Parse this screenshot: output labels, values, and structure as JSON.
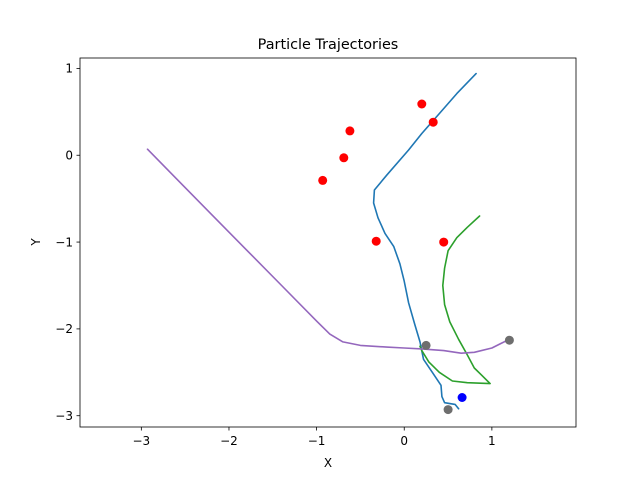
{
  "chart_data": {
    "type": "line",
    "title": "Particle Trajectories",
    "xlabel": "X",
    "ylabel": "Y",
    "xlim": [
      -3.7,
      1.96
    ],
    "ylim": [
      -3.13,
      1.12
    ],
    "xticks": [
      -3,
      -2,
      -1,
      0,
      1
    ],
    "yticks": [
      -3,
      -2,
      -1,
      0,
      1
    ],
    "xtick_labels": [
      "−3",
      "−2",
      "−1",
      "0",
      "1"
    ],
    "ytick_labels": [
      "−3",
      "−2",
      "−1",
      "0",
      "1"
    ],
    "grid": false,
    "legend": "none",
    "series": [
      {
        "color": "#1f77b4",
        "points": [
          [
            0.82,
            0.94
          ],
          [
            0.6,
            0.71
          ],
          [
            0.4,
            0.48
          ],
          [
            0.2,
            0.25
          ],
          [
            0.05,
            0.06
          ],
          [
            -0.2,
            -0.23
          ],
          [
            -0.34,
            -0.4
          ],
          [
            -0.35,
            -0.55
          ],
          [
            -0.3,
            -0.72
          ],
          [
            -0.22,
            -0.9
          ],
          [
            -0.12,
            -1.05
          ],
          [
            -0.05,
            -1.25
          ],
          [
            0.0,
            -1.45
          ],
          [
            0.05,
            -1.7
          ],
          [
            0.12,
            -1.95
          ],
          [
            0.18,
            -2.15
          ],
          [
            0.22,
            -2.35
          ],
          [
            0.32,
            -2.5
          ],
          [
            0.42,
            -2.65
          ],
          [
            0.43,
            -2.78
          ],
          [
            0.46,
            -2.85
          ],
          [
            0.58,
            -2.87
          ],
          [
            0.62,
            -2.92
          ]
        ]
      },
      {
        "color": "#2ca02c",
        "points": [
          [
            0.86,
            -0.7
          ],
          [
            0.72,
            -0.83
          ],
          [
            0.6,
            -0.95
          ],
          [
            0.5,
            -1.1
          ],
          [
            0.46,
            -1.3
          ],
          [
            0.44,
            -1.5
          ],
          [
            0.46,
            -1.72
          ],
          [
            0.52,
            -1.92
          ],
          [
            0.62,
            -2.12
          ],
          [
            0.72,
            -2.3
          ],
          [
            0.8,
            -2.45
          ],
          [
            0.88,
            -2.53
          ],
          [
            0.98,
            -2.63
          ],
          [
            0.72,
            -2.62
          ],
          [
            0.55,
            -2.6
          ],
          [
            0.4,
            -2.5
          ],
          [
            0.28,
            -2.38
          ],
          [
            0.2,
            -2.25
          ],
          [
            0.18,
            -2.2
          ]
        ]
      },
      {
        "color": "#9467bd",
        "points": [
          [
            -2.93,
            0.07
          ],
          [
            -2.6,
            -0.27
          ],
          [
            -2.2,
            -0.68
          ],
          [
            -1.8,
            -1.09
          ],
          [
            -1.4,
            -1.5
          ],
          [
            -1.0,
            -1.91
          ],
          [
            -0.85,
            -2.06
          ],
          [
            -0.7,
            -2.15
          ],
          [
            -0.5,
            -2.19
          ],
          [
            -0.2,
            -2.21
          ],
          [
            0.0,
            -2.22
          ],
          [
            0.2,
            -2.23
          ],
          [
            0.45,
            -2.25
          ],
          [
            0.65,
            -2.28
          ],
          [
            0.8,
            -2.27
          ],
          [
            1.0,
            -2.22
          ],
          [
            1.1,
            -2.17
          ],
          [
            1.2,
            -2.12
          ]
        ]
      }
    ],
    "markers": [
      {
        "x": 0.2,
        "y": 0.59,
        "color": "#ff0000"
      },
      {
        "x": 0.33,
        "y": 0.38,
        "color": "#ff0000"
      },
      {
        "x": -0.62,
        "y": 0.28,
        "color": "#ff0000"
      },
      {
        "x": -0.69,
        "y": -0.03,
        "color": "#ff0000"
      },
      {
        "x": -0.93,
        "y": -0.29,
        "color": "#ff0000"
      },
      {
        "x": -0.32,
        "y": -0.99,
        "color": "#ff0000"
      },
      {
        "x": 0.45,
        "y": -1.0,
        "color": "#ff0000"
      },
      {
        "x": 0.25,
        "y": -2.19,
        "color": "#6e6e6e"
      },
      {
        "x": 1.2,
        "y": -2.13,
        "color": "#6e6e6e"
      },
      {
        "x": 0.5,
        "y": -2.93,
        "color": "#6e6e6e"
      },
      {
        "x": 0.66,
        "y": -2.79,
        "color": "#0000ff"
      }
    ]
  }
}
